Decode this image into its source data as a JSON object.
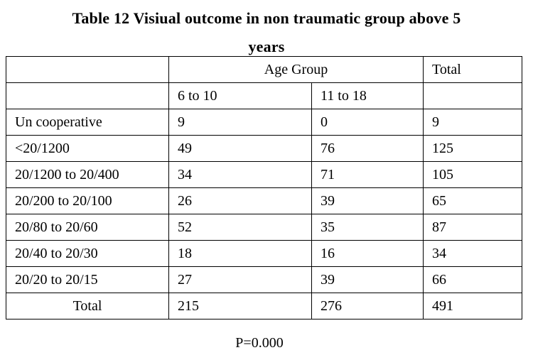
{
  "title": {
    "line1": "Table 12 Visiual  outcome in non traumatic group above 5",
    "line2": "years"
  },
  "table": {
    "header": {
      "group_label": "Age Group",
      "total_label": "Total",
      "sub_col1": "6 to 10",
      "sub_col2": "11 to 18"
    },
    "rows": [
      {
        "label": "Un cooperative",
        "c1": "9",
        "c2": "0",
        "total": "9"
      },
      {
        "label": "<20/1200",
        "c1": "49",
        "c2": "76",
        "total": "125"
      },
      {
        "label": "20/1200  to 20/400",
        "c1": "34",
        "c2": "71",
        "total": "105"
      },
      {
        "label": "20/200 to 20/100",
        "c1": "26",
        "c2": "39",
        "total": "65"
      },
      {
        "label": "20/80  to 20/60",
        "c1": "52",
        "c2": "35",
        "total": "87"
      },
      {
        "label": "20/40 to 20/30",
        "c1": "18",
        "c2": "16",
        "total": "34"
      },
      {
        "label": "20/20  to 20/15",
        "c1": "27",
        "c2": "39",
        "total": "66"
      },
      {
        "label": "Total",
        "c1": "215",
        "c2": "276",
        "total": "491"
      }
    ]
  },
  "footnote": "P=0.000"
}
